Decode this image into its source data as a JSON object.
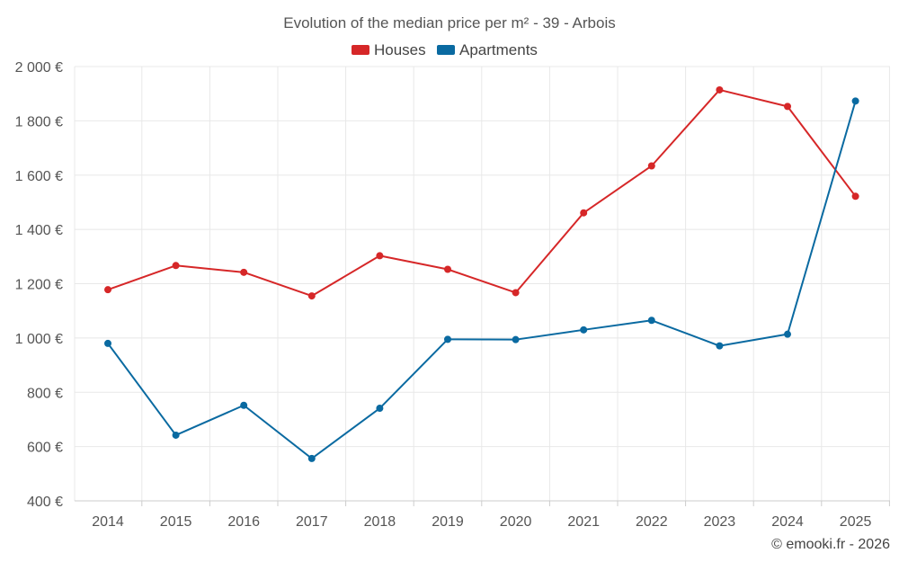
{
  "chart_data": {
    "type": "line",
    "title": "Evolution of the median price per m² - 39 - Arbois",
    "categories": [
      "2014",
      "2015",
      "2016",
      "2017",
      "2018",
      "2019",
      "2020",
      "2021",
      "2022",
      "2023",
      "2024",
      "2025"
    ],
    "series": [
      {
        "name": "Houses",
        "color": "#d62728",
        "values": [
          1178,
          1267,
          1242,
          1155,
          1303,
          1253,
          1167,
          1461,
          1634,
          1914,
          1853,
          1522
        ]
      },
      {
        "name": "Apartments",
        "color": "#0a6aa1",
        "values": [
          980,
          642,
          752,
          556,
          741,
          995,
          994,
          1030,
          1065,
          971,
          1014,
          1873
        ]
      }
    ],
    "ylim": [
      400,
      2000
    ],
    "yticks": [
      400,
      600,
      800,
      1000,
      1200,
      1400,
      1600,
      1800,
      2000
    ],
    "ytick_labels": [
      "400 €",
      "600 €",
      "800 €",
      "1 000 €",
      "1 200 €",
      "1 400 €",
      "1 600 €",
      "1 800 €",
      "2 000 €"
    ],
    "xlabel": "",
    "ylabel": "",
    "grid": true,
    "legend_position": "top-center"
  },
  "credit": "© emooki.fr - 2026"
}
